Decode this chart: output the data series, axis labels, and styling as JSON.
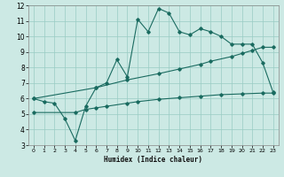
{
  "xlabel": "Humidex (Indice chaleur)",
  "bg_color": "#cce9e4",
  "line_color": "#1a6b60",
  "grid_color": "#99ccc4",
  "xlim": [
    -0.5,
    23.5
  ],
  "ylim": [
    3,
    12
  ],
  "xticks": [
    0,
    1,
    2,
    3,
    4,
    5,
    6,
    7,
    8,
    9,
    10,
    11,
    12,
    13,
    14,
    15,
    16,
    17,
    18,
    19,
    20,
    21,
    22,
    23
  ],
  "yticks": [
    3,
    4,
    5,
    6,
    7,
    8,
    9,
    10,
    11,
    12
  ],
  "line1_x": [
    0,
    1,
    2,
    3,
    4,
    5,
    6,
    7,
    8,
    9,
    10,
    11,
    12,
    13,
    14,
    15,
    16,
    17,
    18,
    19,
    20,
    21,
    22,
    23
  ],
  "line1_y": [
    6.0,
    5.8,
    5.7,
    4.7,
    3.3,
    5.5,
    6.7,
    7.0,
    8.5,
    7.4,
    11.1,
    10.3,
    11.8,
    11.5,
    10.3,
    10.1,
    10.5,
    10.3,
    10.0,
    9.5,
    9.5,
    9.5,
    8.3,
    6.4
  ],
  "line2_x": [
    0,
    6,
    9,
    12,
    14,
    16,
    17,
    19,
    20,
    21,
    22,
    23
  ],
  "line2_y": [
    6.0,
    6.7,
    7.2,
    7.6,
    7.9,
    8.2,
    8.4,
    8.7,
    8.9,
    9.1,
    9.3,
    9.3
  ],
  "line3_x": [
    0,
    4,
    5,
    6,
    7,
    9,
    10,
    12,
    14,
    16,
    18,
    20,
    22,
    23
  ],
  "line3_y": [
    5.1,
    5.1,
    5.3,
    5.4,
    5.5,
    5.7,
    5.8,
    5.95,
    6.05,
    6.15,
    6.25,
    6.3,
    6.35,
    6.35
  ]
}
